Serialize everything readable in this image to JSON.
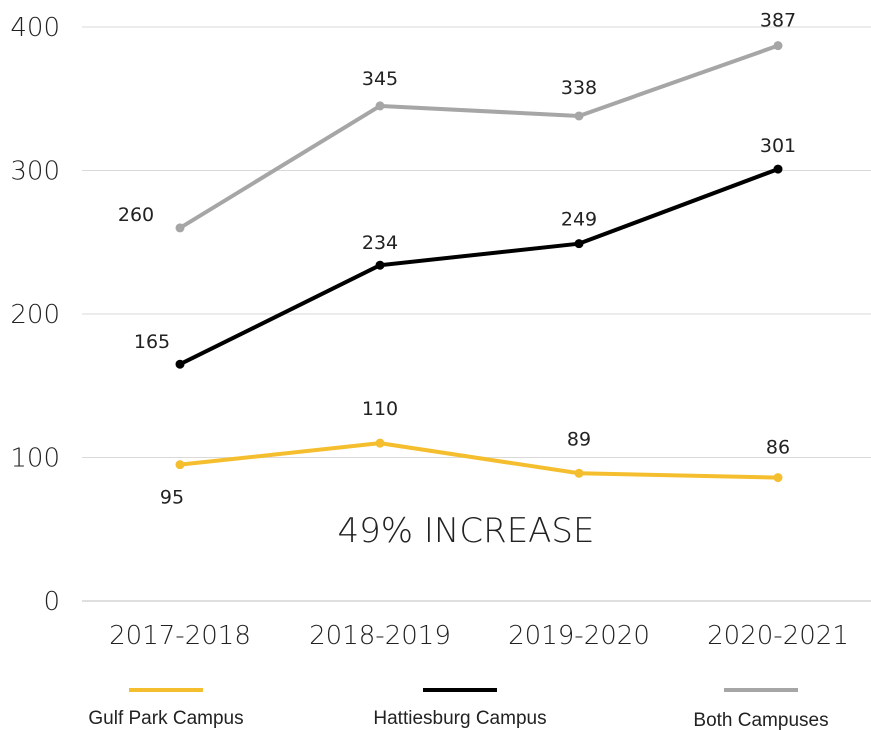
{
  "chart_data": {
    "type": "line",
    "categories": [
      "2017-2018",
      "2018-2019",
      "2019-2020",
      "2020-2021"
    ],
    "ylim": [
      0,
      400
    ],
    "yticks": [
      0,
      100,
      200,
      300,
      400
    ],
    "grid": true,
    "legend_position": "bottom",
    "annotation": "49% INCREASE",
    "series": [
      {
        "name": "Gulf Park Campus",
        "color": "#F5BE2E",
        "values": [
          95,
          110,
          89,
          86
        ]
      },
      {
        "name": "Hattiesburg Campus",
        "color": "#000000",
        "values": [
          165,
          234,
          249,
          301
        ]
      },
      {
        "name": "Both Campuses",
        "color": "#A6A6A6",
        "values": [
          260,
          345,
          338,
          387
        ]
      }
    ]
  }
}
